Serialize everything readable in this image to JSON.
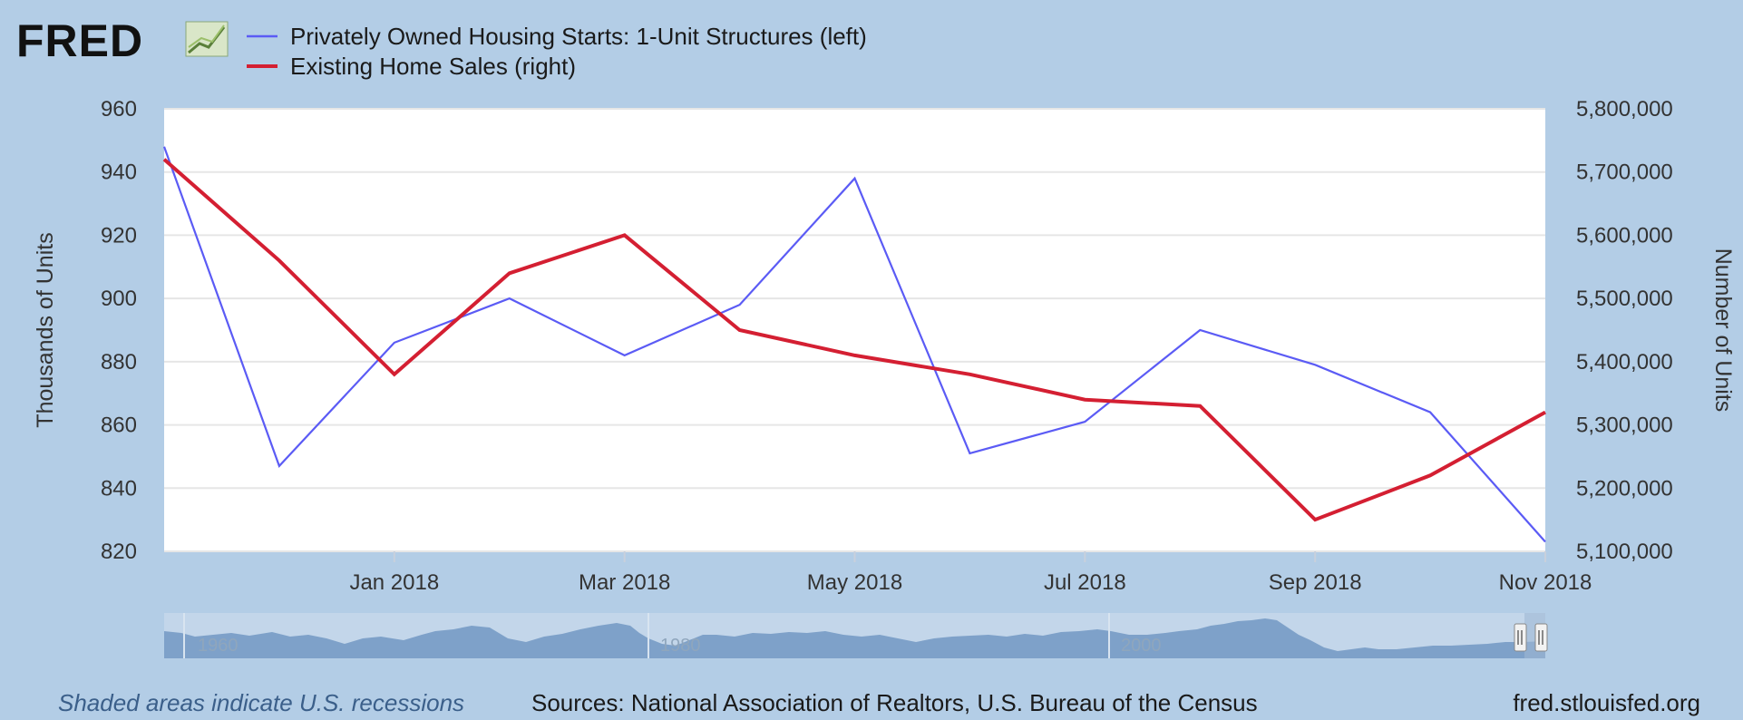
{
  "logo": {
    "text": "FRED"
  },
  "footer": {
    "recession_note": "Shaded areas indicate U.S. recessions",
    "sources": "Sources: National Association of Realtors, U.S. Bureau of the Census",
    "site": "fred.stlouisfed.org"
  },
  "navigator": {
    "labels": [
      "1960",
      "1980",
      "2000"
    ]
  },
  "colors": {
    "background": "#b3cde6",
    "plot_bg": "#ffffff",
    "grid": "#e6e6e6",
    "series_left": "#5b5bf5",
    "series_right": "#d41f32",
    "navigator_fill": "#7a9ec7"
  },
  "chart_data": {
    "type": "line",
    "x": [
      "2017-11",
      "2017-12",
      "2018-01",
      "2018-02",
      "2018-03",
      "2018-04",
      "2018-05",
      "2018-06",
      "2018-07",
      "2018-08",
      "2018-09",
      "2018-10",
      "2018-11"
    ],
    "x_tick_labels": [
      "Jan 2018",
      "Mar 2018",
      "May 2018",
      "Jul 2018",
      "Sep 2018",
      "Nov 2018"
    ],
    "x_tick_indices": [
      2,
      4,
      6,
      8,
      10,
      12
    ],
    "series": [
      {
        "name": "Privately Owned Housing Starts: 1-Unit Structures (left)",
        "axis": "left",
        "color": "#5b5bf5",
        "values": [
          948,
          847,
          886,
          900,
          882,
          898,
          938,
          851,
          861,
          890,
          879,
          864,
          823
        ]
      },
      {
        "name": "Existing Home Sales (right)",
        "axis": "right",
        "color": "#d41f32",
        "values": [
          5720000,
          5560000,
          5380000,
          5540000,
          5600000,
          5450000,
          5410000,
          5380000,
          5340000,
          5330000,
          5150000,
          5220000,
          5320000
        ]
      }
    ],
    "ylabel": "Thousands of Units",
    "ylim": [
      820,
      960
    ],
    "y_ticks": [
      "960",
      "940",
      "920",
      "900",
      "880",
      "860",
      "840",
      "820"
    ],
    "y_tick_values": [
      960,
      940,
      920,
      900,
      880,
      860,
      840,
      820
    ],
    "y2label": "Number of Units",
    "y2lim": [
      5100000,
      5800000
    ],
    "y2_ticks": [
      "5,800,000",
      "5,700,000",
      "5,600,000",
      "5,500,000",
      "5,400,000",
      "5,300,000",
      "5,200,000",
      "5,100,000"
    ],
    "y2_tick_values": [
      5800000,
      5700000,
      5600000,
      5500000,
      5400000,
      5300000,
      5200000,
      5100000
    ],
    "grid": true,
    "legend": "top-left"
  }
}
